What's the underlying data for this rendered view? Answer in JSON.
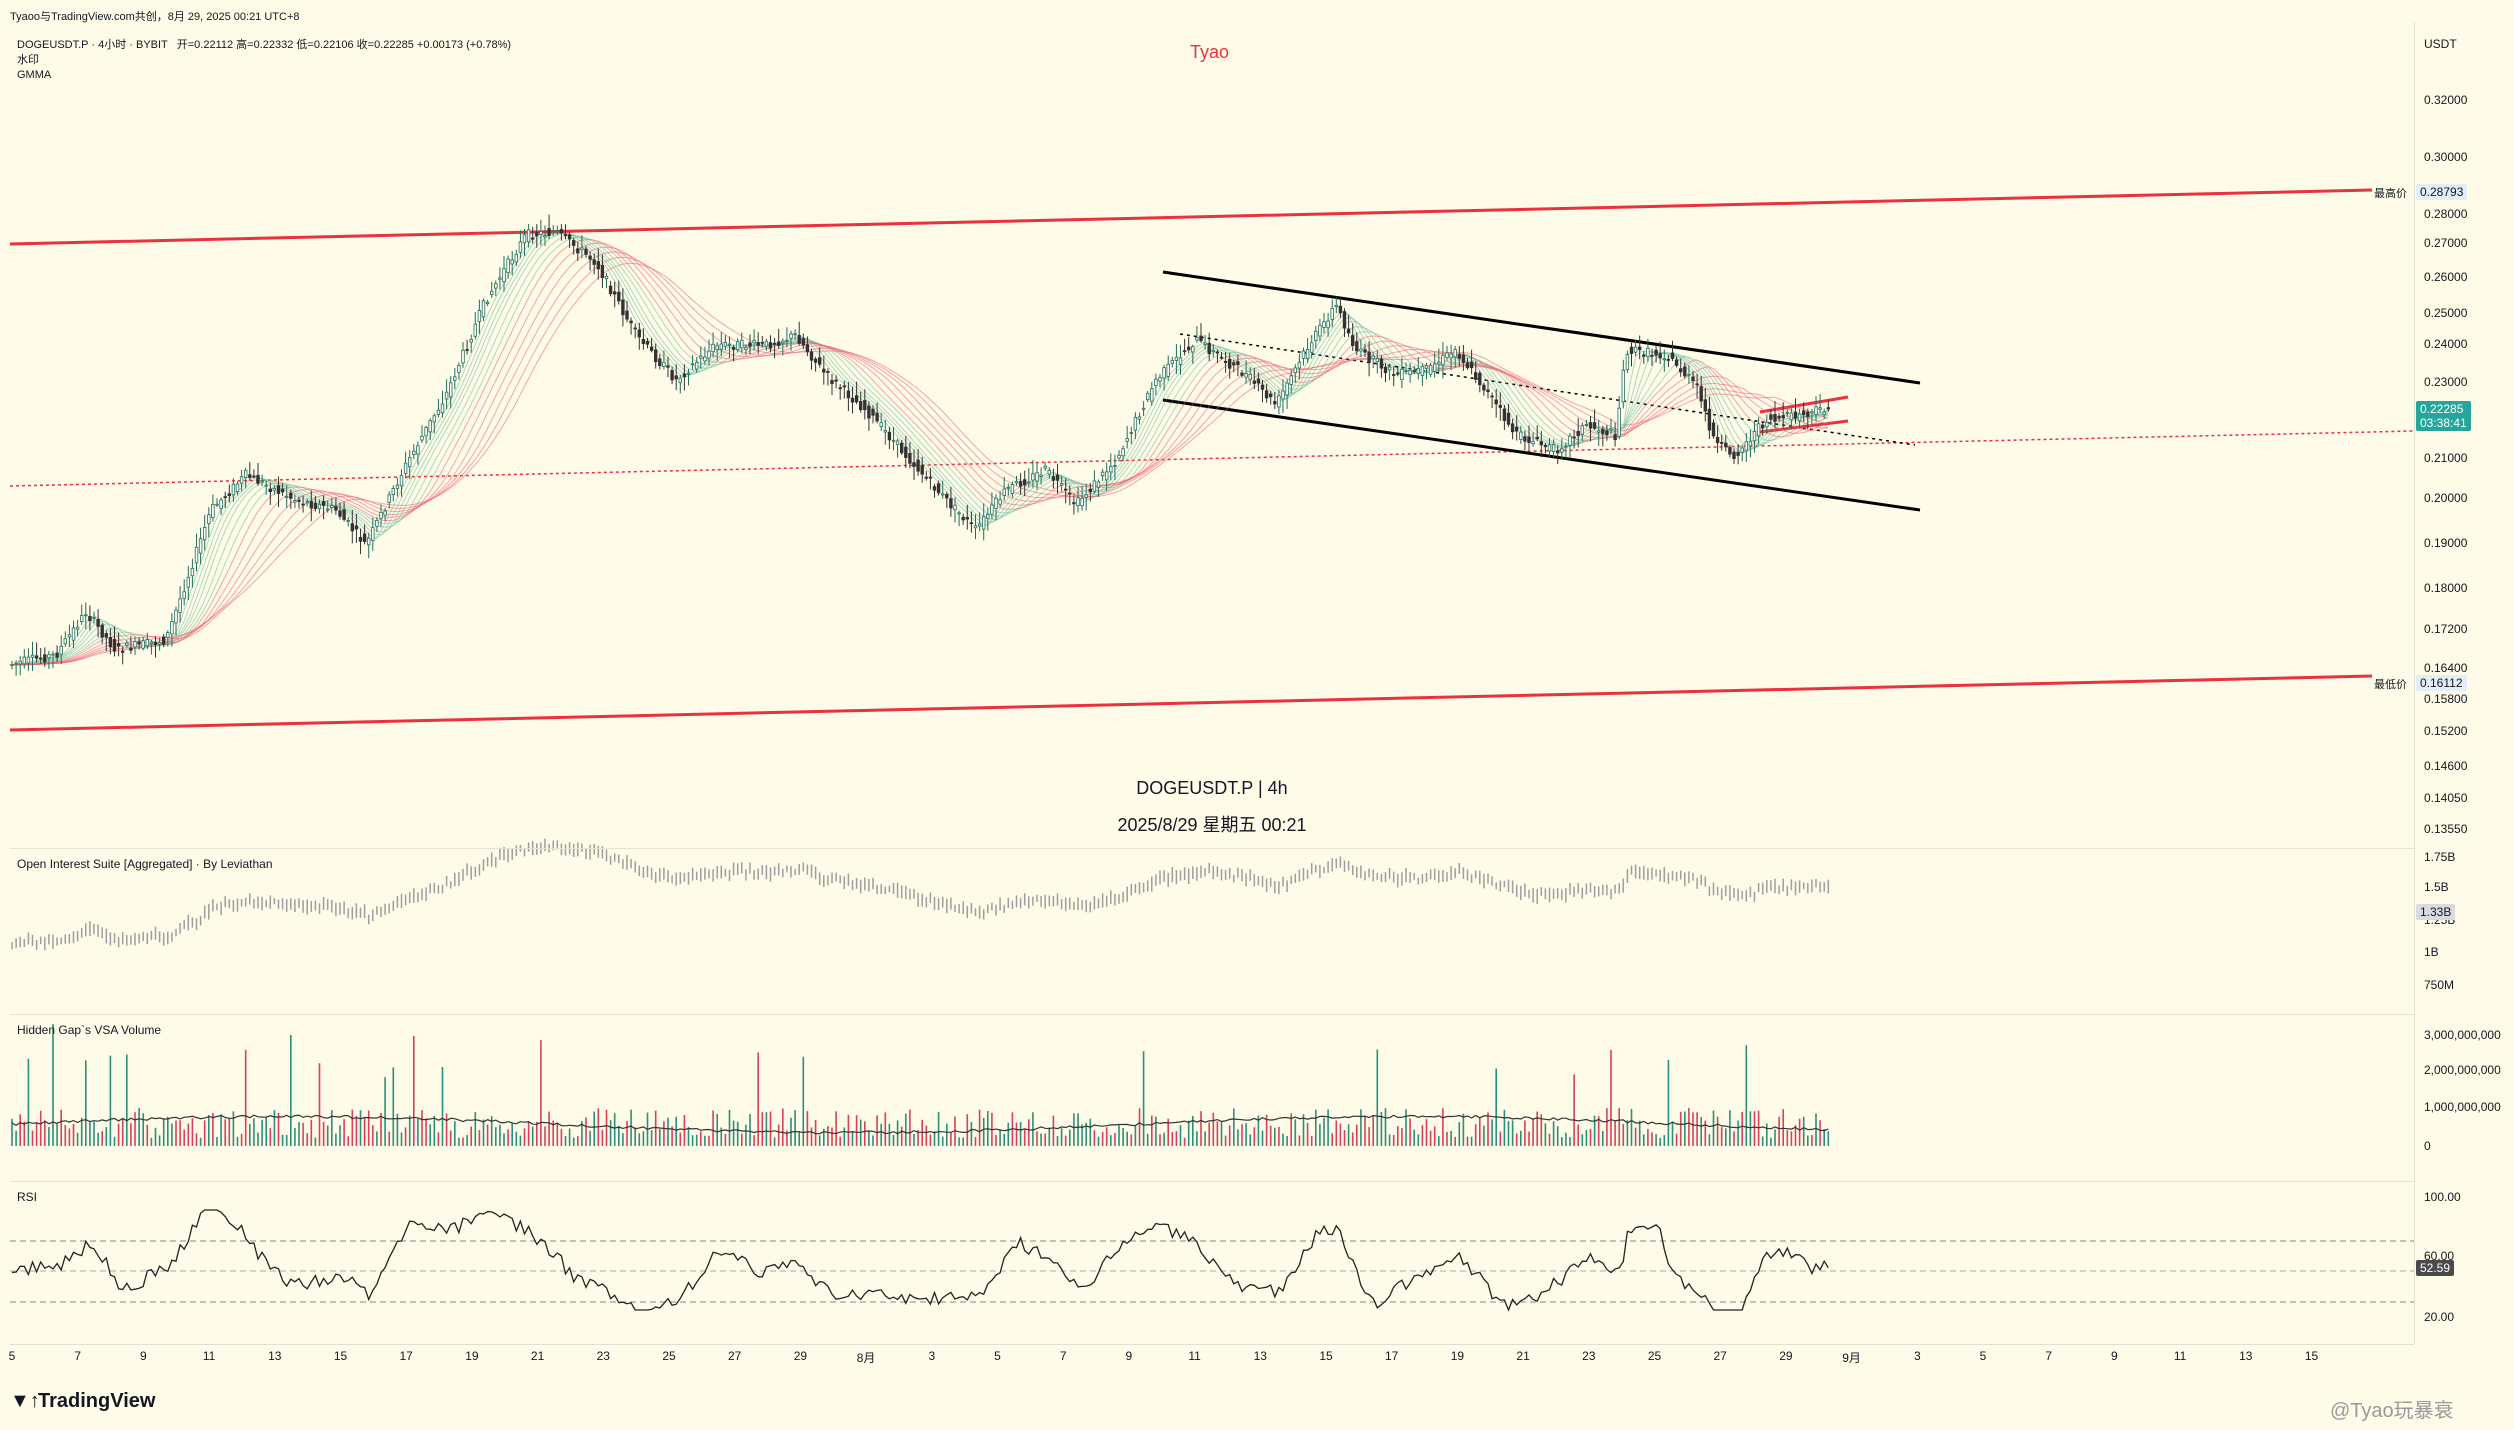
{
  "header": {
    "topline": "Tyaoo与TradingView.com共创，8月 29, 2025 00:21 UTC+8",
    "symbol_line": "DOGEUSDT.P · 4小时 · BYBIT",
    "ohlc": "开=0.22112  高=0.22332  低=0.22106  收=0.22285  +0.00173 (+0.78%)",
    "indicator_1": "水印",
    "indicator_2": "GMMA",
    "watermark_name": "Tyao"
  },
  "price_axis": {
    "currency": "USDT",
    "ticks": [
      "0.32000",
      "0.30000",
      "0.28000",
      "0.27000",
      "0.26000",
      "0.25000",
      "0.24000",
      "0.23000",
      "0.22000",
      "0.21000",
      "0.20000",
      "0.19000",
      "0.18000",
      "0.17200",
      "0.16400",
      "0.15800",
      "0.15200",
      "0.14600",
      "0.14050",
      "0.13550"
    ],
    "high_label": "最高价",
    "high_value": "0.28793",
    "low_label": "最低价",
    "low_value": "0.16112",
    "last_price": "0.22285",
    "countdown": "03:38:41"
  },
  "center_label": {
    "line1": "DOGEUSDT.P | 4h",
    "line2": "2025/8/29 星期五 00:21"
  },
  "panes": {
    "oi": {
      "title": "Open Interest Suite [Aggregated] · By Leviathan",
      "ticks": [
        "1.75B",
        "1.5B",
        "1.25B",
        "1B",
        "750M"
      ],
      "current": "1.33B"
    },
    "vsa": {
      "title": "Hidden Gap`s VSA Volume",
      "ticks": [
        "3,000,000,000",
        "2,000,000,000",
        "1,000,000,000",
        "0"
      ]
    },
    "rsi": {
      "title": "RSI",
      "ticks": [
        "100.00",
        "60.00",
        "20.00"
      ],
      "current": "52.59"
    }
  },
  "time_axis": [
    "5",
    "7",
    "9",
    "11",
    "13",
    "15",
    "17",
    "19",
    "21",
    "23",
    "25",
    "27",
    "29",
    "8月",
    "3",
    "5",
    "7",
    "9",
    "11",
    "13",
    "15",
    "17",
    "19",
    "21",
    "23",
    "25",
    "27",
    "29",
    "9月",
    "3",
    "5",
    "7",
    "9",
    "11",
    "13",
    "15"
  ],
  "footer": {
    "brand": "TradingView",
    "credit": "@Tyao玩暴衰"
  },
  "colors": {
    "background": "#fefbe9",
    "red_line": "#e8333f",
    "black_line": "#000000",
    "bull": "#1f8a70",
    "bear": "#e35b6a",
    "last_price_badge": "#26a69a"
  },
  "chart_data": {
    "type": "candlestick",
    "price_range": [
      0.135,
      0.33
    ],
    "series": [
      {
        "name": "GMMA",
        "values": []
      }
    ]
  }
}
